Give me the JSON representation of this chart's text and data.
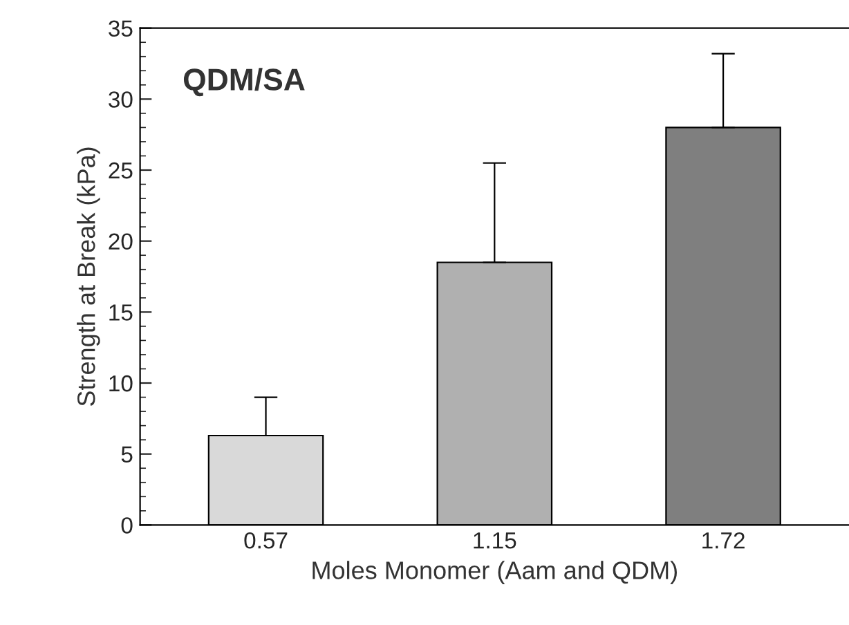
{
  "chart_data": {
    "type": "bar",
    "title": "QDM/SA",
    "xlabel": "Moles Monomer (Aam and QDM)",
    "ylabel": "Strength at Break (kPa)",
    "categories": [
      "0.57",
      "1.15",
      "1.72"
    ],
    "values": [
      6.3,
      18.5,
      28.0
    ],
    "errors": [
      [
        6.3,
        9.0
      ],
      [
        18.5,
        25.5
      ],
      [
        28.0,
        33.2
      ]
    ],
    "colors": [
      "#d9d9d9",
      "#b0b0b0",
      "#7f7f7f"
    ],
    "ylim": [
      0,
      35
    ],
    "yticks": [
      0,
      5,
      10,
      15,
      20,
      25,
      30,
      35
    ],
    "grid": false,
    "legend": false
  }
}
